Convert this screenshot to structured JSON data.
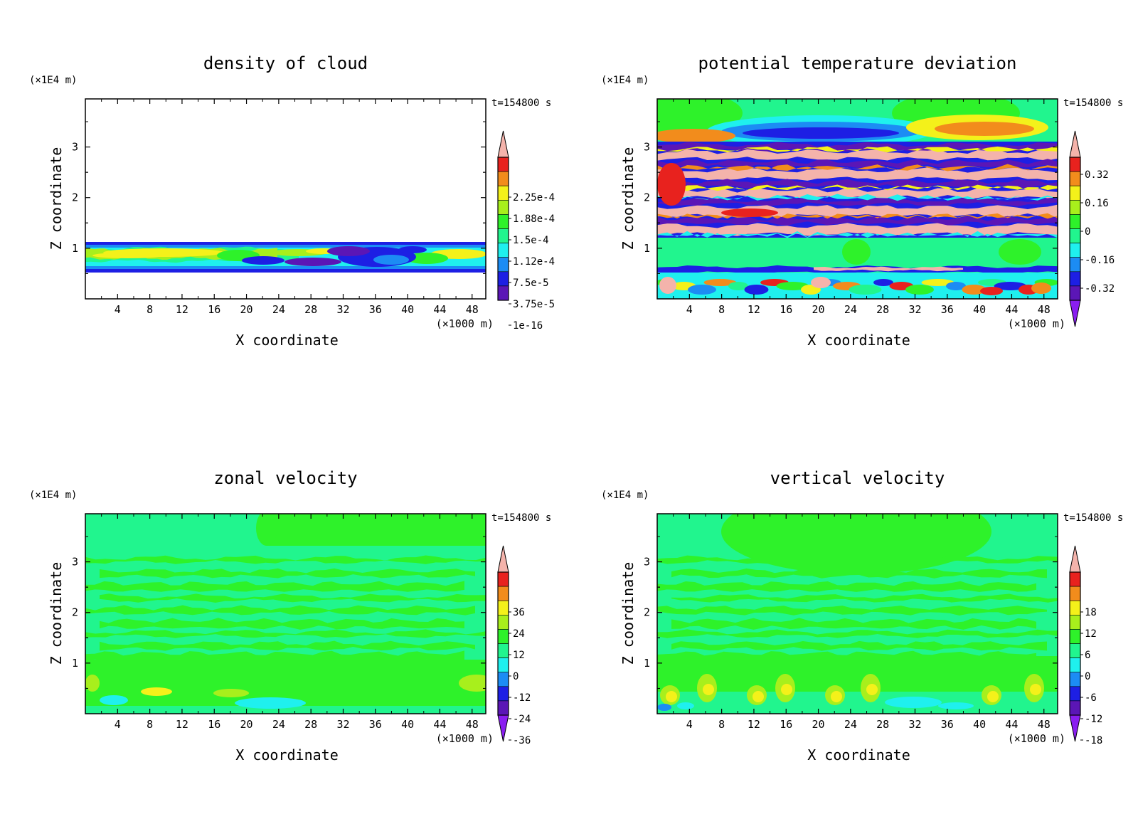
{
  "chart_data": [
    {
      "type": "heatmap",
      "title": "density of cloud",
      "xlabel": "X coordinate",
      "ylabel": "Z coordinate",
      "x_unit": "(×1000 m)",
      "y_unit": "(×1E4 m)",
      "time_label": "t=154800 s",
      "x_ticks": [
        4,
        8,
        12,
        16,
        20,
        24,
        28,
        32,
        36,
        40,
        44,
        48
      ],
      "xlim": [
        0,
        49.7
      ],
      "y_ticks": [
        1,
        2,
        3
      ],
      "ylim": [
        0,
        3.95
      ],
      "colorbar_labels": [
        "2.25e-4",
        "1.88e-4",
        "1.5e-4",
        "1.12e-4",
        "7.5e-5",
        "3.75e-5",
        "1e-16"
      ],
      "field": "cloud"
    },
    {
      "type": "heatmap",
      "title": "potential temperature deviation",
      "xlabel": "X coordinate",
      "ylabel": "Z coordinate",
      "x_unit": "(×1000 m)",
      "y_unit": "(×1E4 m)",
      "time_label": "t=154800 s",
      "x_ticks": [
        4,
        8,
        12,
        16,
        20,
        24,
        28,
        32,
        36,
        40,
        44,
        48
      ],
      "xlim": [
        0,
        49.7
      ],
      "y_ticks": [
        1,
        2,
        3
      ],
      "ylim": [
        0,
        3.95
      ],
      "colorbar_labels": [
        "0.32",
        "0.16",
        "0",
        "-0.16",
        "-0.32"
      ],
      "field": "theta"
    },
    {
      "type": "heatmap",
      "title": "zonal velocity",
      "xlabel": "X coordinate",
      "ylabel": "Z coordinate",
      "x_unit": "(×1000 m)",
      "y_unit": "(×1E4 m)",
      "time_label": "t=154800 s",
      "x_ticks": [
        4,
        8,
        12,
        16,
        20,
        24,
        28,
        32,
        36,
        40,
        44,
        48
      ],
      "xlim": [
        0,
        49.7
      ],
      "y_ticks": [
        1,
        2,
        3
      ],
      "ylim": [
        0,
        3.95
      ],
      "colorbar_labels": [
        "36",
        "24",
        "12",
        "0",
        "-12",
        "-24",
        "-36"
      ],
      "field": "zonal"
    },
    {
      "type": "heatmap",
      "title": "vertical velocity",
      "xlabel": "X coordinate",
      "ylabel": "Z coordinate",
      "x_unit": "(×1000 m)",
      "y_unit": "(×1E4 m)",
      "time_label": "t=154800 s",
      "x_ticks": [
        4,
        8,
        12,
        16,
        20,
        24,
        28,
        32,
        36,
        40,
        44,
        48
      ],
      "xlim": [
        0,
        49.7
      ],
      "y_ticks": [
        1,
        2,
        3
      ],
      "ylim": [
        0,
        3.95
      ],
      "colorbar_labels": [
        "18",
        "12",
        "6",
        "0",
        "-6",
        "-12",
        "-18"
      ],
      "field": "vertical"
    }
  ],
  "colors": {
    "pink": "#f4b3ab",
    "red": "#e8221e",
    "orange": "#f28c1c",
    "yellow": "#f4f11a",
    "lime": "#a8ef1c",
    "green": "#2ef22a",
    "sea_green": "#21f58e",
    "cyan": "#1ff0ee",
    "blue": "#1c8cf4",
    "dark_blue": "#1d1fe4",
    "purple": "#5b16b6",
    "violet": "#8a1ef0"
  }
}
